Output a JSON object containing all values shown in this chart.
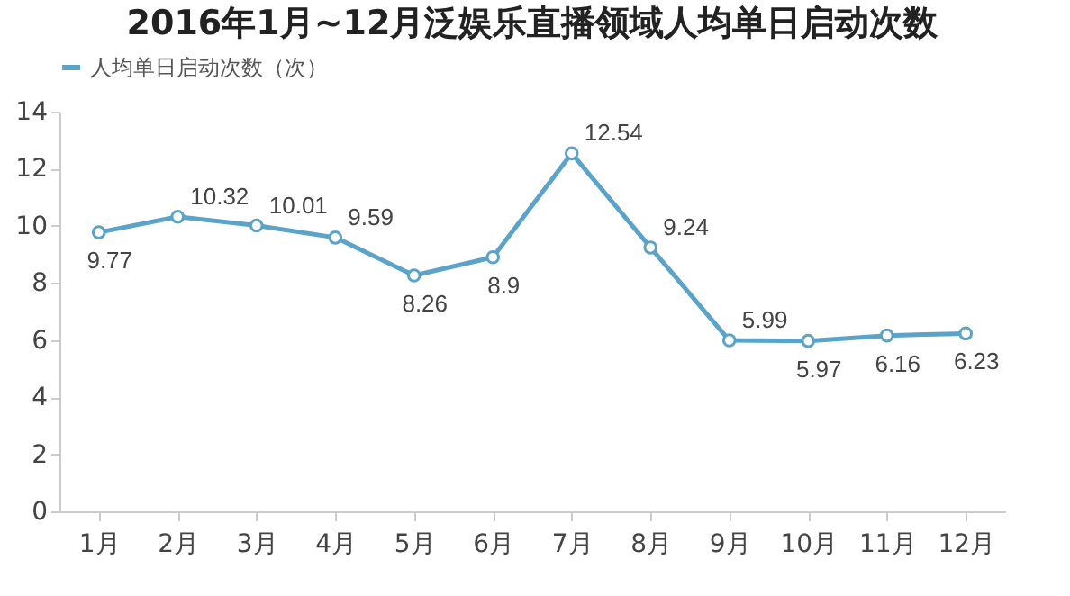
{
  "chart_data": {
    "type": "line",
    "title": "2016年1月~12月泛娱乐直播领域人均单日启动次数",
    "categories": [
      "1月",
      "2月",
      "3月",
      "4月",
      "5月",
      "6月",
      "7月",
      "8月",
      "9月",
      "10月",
      "11月",
      "12月"
    ],
    "series": [
      {
        "name": "人均单日启动次数（次）",
        "color": "#5ba3c9",
        "values": [
          9.77,
          10.32,
          10.01,
          9.59,
          8.26,
          8.9,
          12.54,
          9.24,
          5.99,
          5.97,
          6.16,
          6.23
        ]
      }
    ],
    "ylim": [
      0,
      14
    ],
    "yticks": [
      0,
      2,
      4,
      6,
      8,
      10,
      12,
      14
    ],
    "grid": false,
    "legend": "top",
    "marker": "circle",
    "line_style": "solid",
    "data_labels": true
  }
}
